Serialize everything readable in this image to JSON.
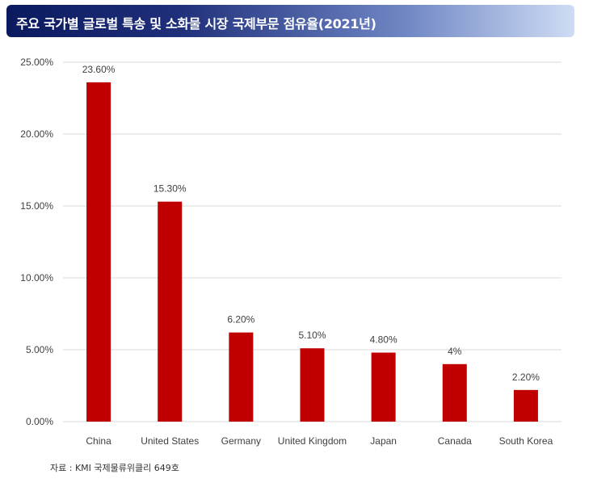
{
  "header": {
    "title": "주요 국가별 글로벌 특송 및 소화물 시장 국제부문 점유율(2021년)"
  },
  "chart_data": {
    "type": "bar",
    "categories": [
      "China",
      "United States",
      "Germany",
      "United Kingdom",
      "Japan",
      "Canada",
      "South Korea"
    ],
    "values": [
      23.6,
      15.3,
      6.2,
      5.1,
      4.8,
      4,
      2.2
    ],
    "data_labels": [
      "23.60%",
      "15.30%",
      "6.20%",
      "5.10%",
      "4.80%",
      "4%",
      "2.20%"
    ],
    "y_ticks": [
      0,
      5,
      10,
      15,
      20,
      25
    ],
    "y_tick_labels": [
      "0.00%",
      "5.00%",
      "10.00%",
      "15.00%",
      "20.00%",
      "25.00%"
    ],
    "ylim": [
      0,
      25
    ],
    "grid": true,
    "bar_color": "#c00000",
    "grid_color": "#d9d9d9"
  },
  "footer": {
    "source": "자료 : KMI 국제물류위클리 649호"
  }
}
